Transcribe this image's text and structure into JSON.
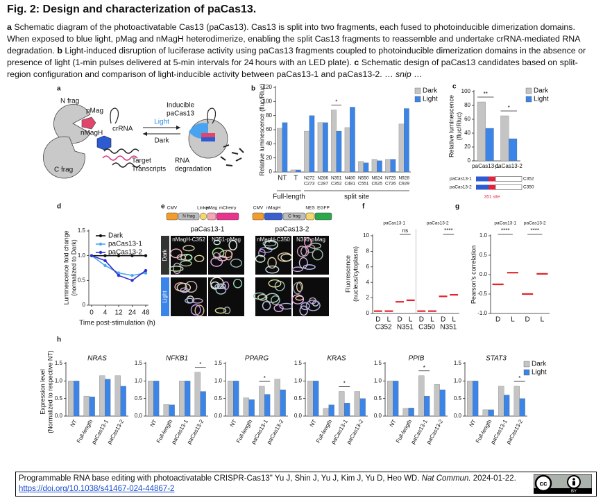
{
  "header": {
    "title": "Fig. 2: Design and characterization of paCas13."
  },
  "caption": {
    "runs": [
      {
        "text": "a",
        "style": "bold"
      },
      {
        "text": " Schematic diagram of the photoactivatable Cas13 (paCas13). Cas13 is split into two fragments, each fused to photoinducible dimerization domains. When exposed to blue light, pMag and nMagH heterodimerize, enabling the split Cas13 fragments to reassemble and undertake crRNA-mediated RNA degradation. "
      },
      {
        "text": "b",
        "style": "bold"
      },
      {
        "text": " Light-induced disruption of luciferase activity using paCas13 fragments coupled to photoinducible dimerization domains in the absence or presence of light (1-min pulses delivered at 5-min intervals for 24 hours with an LED plate). "
      },
      {
        "text": "c",
        "style": "bold"
      },
      {
        "text": " Schematic design of paCas13 candidates based on split-region configuration and comparison of light-inducible activity between paCas13-1 and paCas13-2. … "
      },
      {
        "text": "snip",
        "style": "italic"
      },
      {
        "text": " …"
      }
    ]
  },
  "figure": {
    "a": {
      "letter": "a",
      "n_frag": "N frag",
      "pmag": "pMag",
      "crrna": "crRNA",
      "nmagh": "nMagH",
      "c_frag": "C frag",
      "light": "Light",
      "dark": "Dark",
      "inducible": [
        "Inducible",
        "paCas13"
      ],
      "target": [
        "Target",
        "Transcripts"
      ],
      "degradation": [
        "RNA",
        "degradation"
      ]
    },
    "b": {
      "letter": "b",
      "y_label": "Relative luminescence (fluc/Rluc)",
      "ylim": [
        0,
        120
      ],
      "yticks": [
        0,
        20,
        40,
        60,
        80,
        100,
        120
      ],
      "categories": [
        [
          "NT"
        ],
        [
          "T"
        ],
        [
          "N272",
          "C273"
        ],
        [
          "N286",
          "C287"
        ],
        [
          "N351",
          "C352"
        ],
        [
          "N480",
          "C481"
        ],
        [
          "N550",
          "C551"
        ],
        [
          "N624",
          "C625"
        ],
        [
          "N725",
          "C726"
        ],
        [
          "N928",
          "C929"
        ]
      ],
      "groups": [
        {
          "label": "Full-length",
          "from": 0,
          "to": 1
        },
        {
          "label": "split site",
          "from": 2,
          "to": 9
        }
      ],
      "series": [
        {
          "name": "Dark",
          "color": "#c4c4c4",
          "values": [
            62,
            3,
            58,
            70,
            88,
            63,
            15,
            18,
            18,
            68
          ]
        },
        {
          "name": "Light",
          "color": "#3b84e8",
          "values": [
            70,
            3,
            80,
            70,
            58,
            92,
            13,
            16,
            18,
            90
          ]
        }
      ],
      "annotations": [
        {
          "text": "*",
          "category": 4
        }
      ]
    },
    "c": {
      "letter": "c",
      "y_label": [
        "Relative luminescence",
        "(fluc/Rluc)"
      ],
      "ylim": [
        0,
        100
      ],
      "yticks": [
        0,
        20,
        40,
        60,
        80,
        100
      ],
      "categories": [
        [
          "paCas13-1"
        ],
        [
          "paCas13-2"
        ]
      ],
      "series": [
        {
          "name": "Dark",
          "color": "#c4c4c4",
          "values": [
            85,
            65
          ]
        },
        {
          "name": "Light",
          "color": "#3b84e8",
          "values": [
            47,
            32
          ]
        }
      ],
      "annotations": [
        {
          "text": "**",
          "category": 0
        },
        {
          "text": "*",
          "category": 1
        }
      ],
      "constructs": [
        {
          "name": "paCas13-1",
          "end": "C352"
        },
        {
          "name": "paCas13-2",
          "end": "C350"
        }
      ],
      "site": "351 site"
    },
    "d": {
      "letter": "d",
      "y_label": [
        "Luminescence fold change",
        "(normalized to Dark)"
      ],
      "x_label": "Time post-stimulation (h)",
      "ylim": [
        0,
        1.5
      ],
      "yticks": [
        0,
        0.5,
        {
          "value": 1,
          "label": "1.0"
        },
        1.5
      ],
      "categories": [
        "0",
        "4",
        "12",
        "24",
        "48"
      ],
      "series": [
        {
          "name": "Dark",
          "color": "#111111",
          "values": [
            1,
            1,
            1,
            1,
            1
          ]
        },
        {
          "name": "paCas13-1",
          "color": "#4da6ef",
          "values": [
            1,
            0.8,
            0.65,
            0.6,
            0.65
          ]
        },
        {
          "name": "paCas13-2",
          "color": "#2a2fd4",
          "values": [
            1,
            0.9,
            0.6,
            0.5,
            0.7
          ]
        }
      ]
    },
    "e": {
      "letter": "e",
      "constructs": [
        [
          "CMV",
          "N frag",
          "Linker",
          "pMag",
          "mCherry"
        ],
        [
          "CMV",
          "nMagH",
          "C frag",
          "NES",
          "EGFP"
        ]
      ],
      "groups": [
        "paCas13-1",
        "paCas13-2"
      ],
      "columns": [
        "nMagH-C352",
        "N351-pMag",
        "nMagH-C350",
        "N351-pMag"
      ],
      "rows": [
        "Dark",
        "Light"
      ]
    },
    "f": {
      "letter": "f",
      "y_label": [
        "Fluorescence",
        "(nucleus/cytoplasm)"
      ],
      "ylim": [
        0,
        10
      ],
      "yticks": [
        0,
        2,
        4,
        6,
        8,
        10
      ],
      "categories": [
        "D",
        "L",
        "D",
        "L",
        "D",
        "L",
        "D",
        "L"
      ],
      "groups": [
        "C352",
        "N351",
        "C350",
        "N351"
      ],
      "subtitles": [
        "paCas13-1",
        "paCas13-2"
      ],
      "means": [
        0.3,
        0.3,
        1.5,
        1.7,
        0.3,
        0.3,
        2.2,
        2.4
      ],
      "mean_color": "#e0242b",
      "annotations": [
        {
          "text": "ns",
          "categories": [
            2,
            3
          ]
        },
        {
          "text": "****",
          "categories": [
            6,
            7
          ]
        }
      ]
    },
    "g": {
      "letter": "g",
      "y_label": "Pearson's correlation",
      "ylim": [
        -1,
        1
      ],
      "yticks": [
        {
          "value": -1,
          "label": "-1.0"
        },
        -0.5,
        {
          "value": 0,
          "label": "0.0"
        },
        0.5,
        {
          "value": 1,
          "label": "1.0"
        }
      ],
      "categories": [
        "D",
        "L",
        "D",
        "L"
      ],
      "subtitles": [
        "paCas13-1",
        "paCas13-2"
      ],
      "means": [
        -0.25,
        0.05,
        -0.5,
        0.02
      ],
      "mean_color": "#e0242b",
      "annotations": [
        {
          "text": "****",
          "categories": [
            0,
            1
          ]
        },
        {
          "text": "****",
          "categories": [
            2,
            3
          ]
        }
      ]
    },
    "h": {
      "letter": "h",
      "y_label": [
        "Expression level",
        "(Normalized to respective NT)"
      ],
      "legend": [
        {
          "name": "Dark",
          "color": "#c4c4c4"
        },
        {
          "name": "Light",
          "color": "#3b84e8"
        }
      ],
      "charts": [
        {
          "title": "NRAS",
          "ylim": [
            0,
            1.5
          ],
          "yticks": [
            {
              "value": 0,
              "label": "0.0"
            },
            0.5,
            {
              "value": 1,
              "label": "1.0"
            },
            1.5
          ],
          "categories": [
            "NT",
            "Full-length",
            "paCas13-1",
            "paCas13-2"
          ],
          "series": [
            {
              "values": [
                1,
                0.57,
                1.15,
                1.15
              ]
            },
            {
              "values": [
                1,
                0.55,
                1.05,
                0.85
              ]
            }
          ],
          "annotations": []
        },
        {
          "title": "NFKB1",
          "ylim": [
            0,
            1.5
          ],
          "yticks": [
            {
              "value": 0,
              "label": "0.0"
            },
            0.5,
            {
              "value": 1,
              "label": "1.0"
            },
            1.5
          ],
          "categories": [
            "NT",
            "Full-length",
            "paCas13-1",
            "paCas13-2"
          ],
          "series": [
            {
              "values": [
                1,
                0.33,
                1.0,
                1.25
              ]
            },
            {
              "values": [
                1,
                0.32,
                1.0,
                0.7
              ]
            }
          ],
          "annotations": [
            {
              "text": "*",
              "category": 3
            }
          ]
        },
        {
          "title": "PPARG",
          "ylim": [
            0,
            1.5
          ],
          "yticks": [
            {
              "value": 0,
              "label": "0.0"
            },
            0.5,
            {
              "value": 1,
              "label": "1.0"
            },
            1.5
          ],
          "categories": [
            "NT",
            "Full-length",
            "paCas13-1",
            "paCas13-2"
          ],
          "series": [
            {
              "values": [
                1,
                0.52,
                0.85,
                1.05
              ]
            },
            {
              "values": [
                1,
                0.47,
                0.62,
                0.75
              ]
            }
          ],
          "annotations": [
            {
              "text": "*",
              "category": 2
            }
          ]
        },
        {
          "title": "KRAS",
          "ylim": [
            0,
            1.5
          ],
          "yticks": [
            {
              "value": 0,
              "label": "0.0"
            },
            0.5,
            {
              "value": 1,
              "label": "1.0"
            },
            1.5
          ],
          "categories": [
            "NT",
            "Full-length",
            "paCas13-1",
            "paCas13-2"
          ],
          "series": [
            {
              "values": [
                1,
                0.22,
                0.7,
                0.7
              ]
            },
            {
              "values": [
                1,
                0.32,
                0.37,
                0.5
              ]
            }
          ],
          "annotations": [
            {
              "text": "*",
              "category": 2
            }
          ]
        },
        {
          "title": "PPIB",
          "ylim": [
            0,
            1.5
          ],
          "yticks": [
            {
              "value": 0,
              "label": "0.0"
            },
            0.5,
            {
              "value": 1,
              "label": "1.0"
            },
            1.5
          ],
          "categories": [
            "NT",
            "Full-length",
            "paCas13-1",
            "paCas13-2"
          ],
          "series": [
            {
              "values": [
                1,
                0.22,
                1.15,
                0.9
              ]
            },
            {
              "values": [
                1,
                0.23,
                0.57,
                0.75
              ]
            }
          ],
          "annotations": [
            {
              "text": "*",
              "category": 2
            }
          ]
        },
        {
          "title": "STAT3",
          "ylim": [
            0,
            1.5
          ],
          "yticks": [
            {
              "value": 0,
              "label": "0.0"
            },
            0.5,
            {
              "value": 1,
              "label": "1.0"
            },
            1.5
          ],
          "categories": [
            "NT",
            "Full-length",
            "paCas13-1",
            "paCas13-2"
          ],
          "series": [
            {
              "values": [
                1,
                0.18,
                0.85,
                0.85
              ]
            },
            {
              "values": [
                1,
                0.18,
                0.6,
                0.5
              ]
            }
          ],
          "annotations": [
            {
              "text": "*",
              "category": 3
            }
          ]
        }
      ]
    }
  },
  "citation": {
    "runs": [
      {
        "text": "Programmable RNA base editing with photoactivatable CRISPR-Cas13\" Yu J, Shin J, Yu J, Kim J, Yu D, Heo WD. "
      },
      {
        "text": "Nat Commun.",
        "style": "italic"
      },
      {
        "text": " 2024-01-22."
      }
    ],
    "doi": "https://doi.org/10.1038/s41467-024-44867-2",
    "license": [
      "cc",
      "BY"
    ]
  }
}
